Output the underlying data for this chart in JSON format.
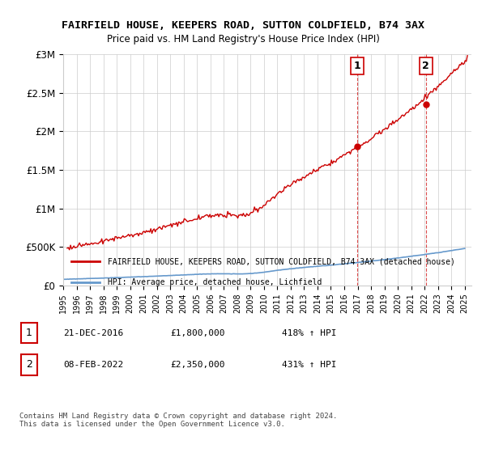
{
  "title": "FAIRFIELD HOUSE, KEEPERS ROAD, SUTTON COLDFIELD, B74 3AX",
  "subtitle": "Price paid vs. HM Land Registry's House Price Index (HPI)",
  "ylim": [
    0,
    3000000
  ],
  "yticks": [
    0,
    500000,
    1000000,
    1500000,
    2000000,
    2500000,
    3000000
  ],
  "ytick_labels": [
    "£0",
    "£500K",
    "£1M",
    "£1.5M",
    "£2M",
    "£2.5M",
    "£3M"
  ],
  "xlim_start": 1995.0,
  "xlim_end": 2025.5,
  "marker1_x": 2016.97,
  "marker1_y": 1800000,
  "marker2_x": 2022.1,
  "marker2_y": 2350000,
  "marker1_label": "1",
  "marker2_label": "2",
  "legend_line1": "FAIRFIELD HOUSE, KEEPERS ROAD, SUTTON COLDFIELD, B74 3AX (detached house)",
  "legend_line2": "HPI: Average price, detached house, Lichfield",
  "annotation1_num": "1",
  "annotation1_date": "21-DEC-2016",
  "annotation1_price": "£1,800,000",
  "annotation1_hpi": "418% ↑ HPI",
  "annotation2_num": "2",
  "annotation2_date": "08-FEB-2022",
  "annotation2_price": "£2,350,000",
  "annotation2_hpi": "431% ↑ HPI",
  "footer": "Contains HM Land Registry data © Crown copyright and database right 2024.\nThis data is licensed under the Open Government Licence v3.0.",
  "house_color": "#cc0000",
  "hpi_color": "#6699cc",
  "bg_color": "#ffffff",
  "grid_color": "#cccccc"
}
